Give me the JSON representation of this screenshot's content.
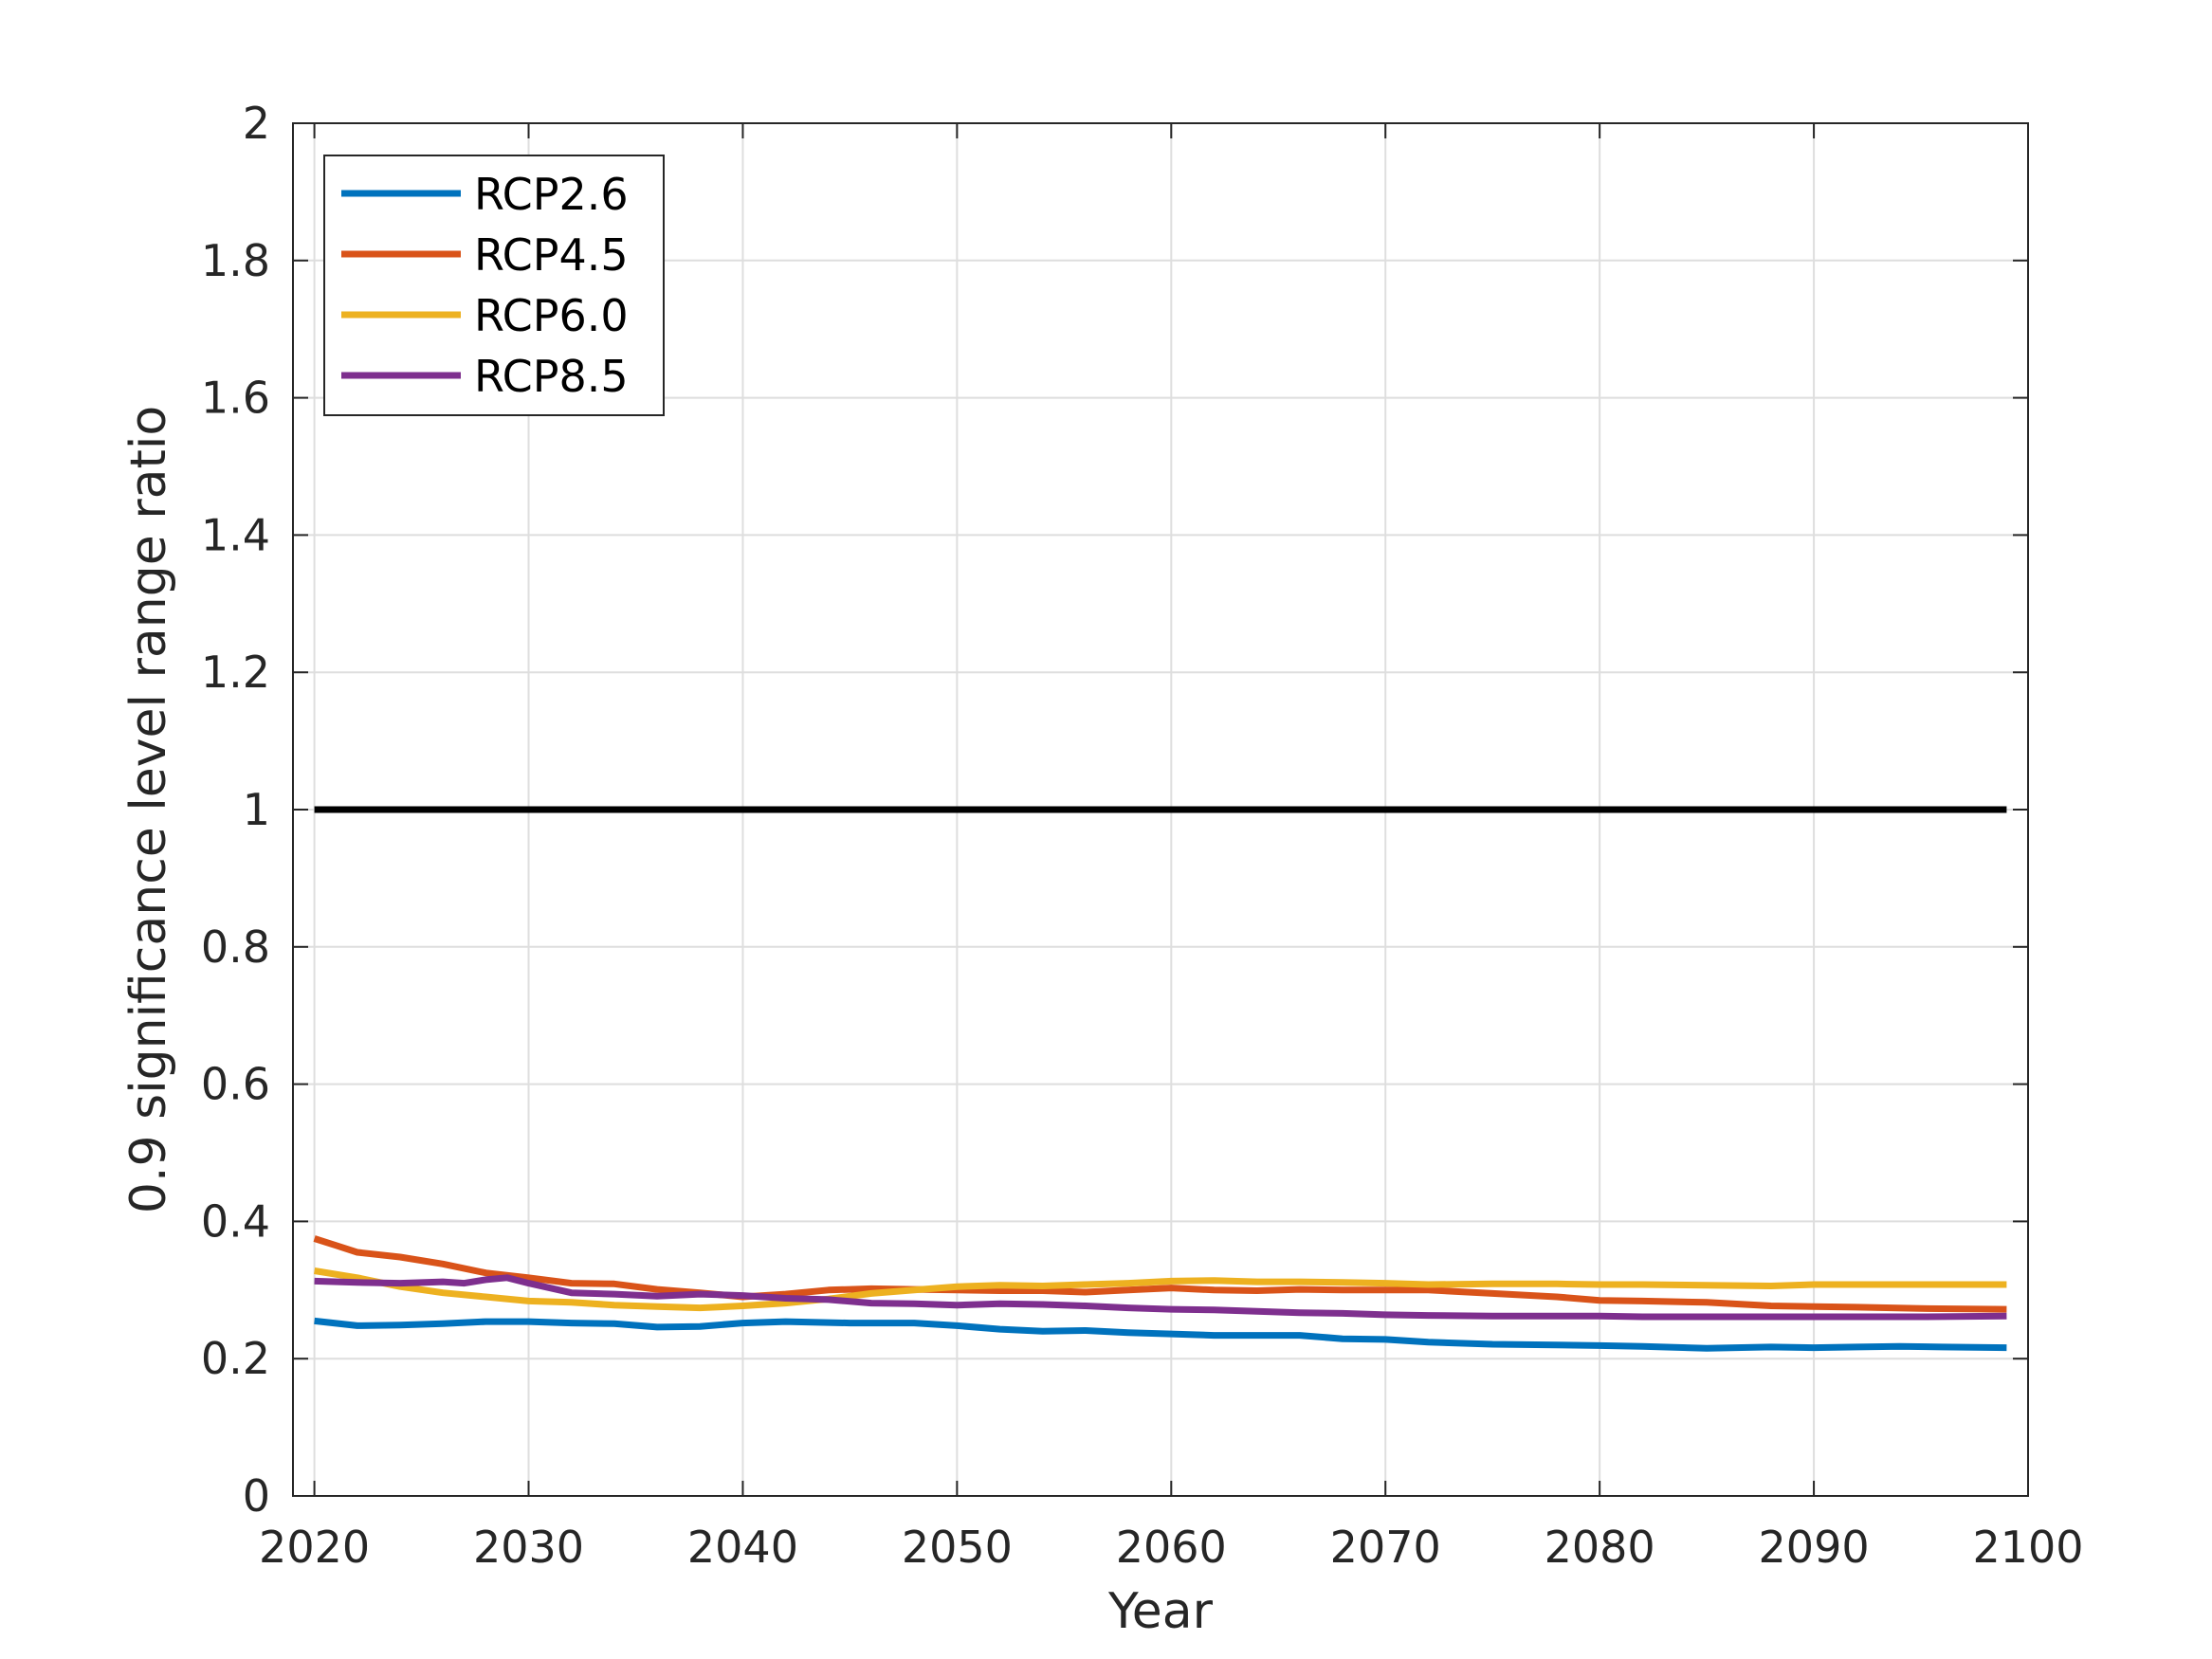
{
  "chart_data": {
    "type": "line",
    "xlabel": "Year",
    "ylabel": "0.9 significance level range ratio",
    "xlim": [
      2019,
      2100
    ],
    "ylim": [
      0,
      2
    ],
    "xticks": [
      2020,
      2030,
      2040,
      2050,
      2060,
      2070,
      2080,
      2090,
      2100
    ],
    "yticks": [
      0,
      0.2,
      0.4,
      0.6,
      0.8,
      1,
      1.2,
      1.4,
      1.6,
      1.8,
      2
    ],
    "ytick_labels": [
      "0",
      "0.2",
      "0.4",
      "0.6",
      "0.8",
      "1",
      "1.2",
      "1.4",
      "1.6",
      "1.8",
      "2"
    ],
    "xtick_labels": [
      "2020",
      "2030",
      "2040",
      "2050",
      "2060",
      "2070",
      "2080",
      "2090",
      "2100"
    ],
    "grid": true,
    "legend_position": "top-left",
    "reference_line": {
      "y": 1.0,
      "x_start": 2020,
      "x_end": 2099,
      "color": "#000000"
    },
    "series": [
      {
        "name": "RCP2.6",
        "color": "#0072BD",
        "x": [
          2020,
          2022,
          2024,
          2026,
          2028,
          2030,
          2032,
          2034,
          2036,
          2038,
          2040,
          2042,
          2045,
          2048,
          2050,
          2052,
          2054,
          2056,
          2058,
          2060,
          2062,
          2064,
          2066,
          2068,
          2070,
          2072,
          2075,
          2078,
          2080,
          2082,
          2085,
          2088,
          2090,
          2092,
          2094,
          2096,
          2099
        ],
        "values": [
          0.255,
          0.248,
          0.249,
          0.251,
          0.254,
          0.254,
          0.252,
          0.251,
          0.246,
          0.247,
          0.252,
          0.254,
          0.252,
          0.252,
          0.248,
          0.243,
          0.24,
          0.241,
          0.238,
          0.236,
          0.234,
          0.234,
          0.234,
          0.229,
          0.228,
          0.224,
          0.221,
          0.22,
          0.219,
          0.218,
          0.215,
          0.217,
          0.216,
          0.217,
          0.218,
          0.217,
          0.216
        ]
      },
      {
        "name": "RCP4.5",
        "color": "#D95319",
        "x": [
          2020,
          2021,
          2022,
          2024,
          2026,
          2028,
          2030,
          2032,
          2034,
          2036,
          2038,
          2040,
          2042,
          2044,
          2046,
          2048,
          2050,
          2052,
          2054,
          2056,
          2058,
          2060,
          2062,
          2064,
          2066,
          2068,
          2070,
          2072,
          2075,
          2078,
          2080,
          2082,
          2085,
          2088,
          2090,
          2092,
          2095,
          2099
        ],
        "values": [
          0.375,
          0.365,
          0.355,
          0.348,
          0.338,
          0.325,
          0.318,
          0.31,
          0.309,
          0.301,
          0.296,
          0.29,
          0.294,
          0.3,
          0.302,
          0.301,
          0.3,
          0.299,
          0.299,
          0.297,
          0.3,
          0.303,
          0.3,
          0.299,
          0.301,
          0.3,
          0.3,
          0.3,
          0.295,
          0.29,
          0.285,
          0.284,
          0.282,
          0.277,
          0.276,
          0.275,
          0.273,
          0.272
        ]
      },
      {
        "name": "RCP6.0",
        "color": "#EDB120",
        "x": [
          2020,
          2022,
          2024,
          2026,
          2028,
          2030,
          2032,
          2034,
          2036,
          2038,
          2040,
          2042,
          2044,
          2046,
          2048,
          2050,
          2052,
          2054,
          2056,
          2058,
          2060,
          2062,
          2064,
          2066,
          2068,
          2070,
          2072,
          2075,
          2078,
          2080,
          2082,
          2085,
          2088,
          2090,
          2092,
          2095,
          2099
        ],
        "values": [
          0.328,
          0.318,
          0.305,
          0.296,
          0.29,
          0.284,
          0.282,
          0.278,
          0.276,
          0.274,
          0.277,
          0.281,
          0.287,
          0.295,
          0.3,
          0.305,
          0.307,
          0.306,
          0.308,
          0.31,
          0.313,
          0.314,
          0.312,
          0.312,
          0.311,
          0.31,
          0.308,
          0.309,
          0.309,
          0.308,
          0.308,
          0.307,
          0.306,
          0.308,
          0.308,
          0.308,
          0.308
        ]
      },
      {
        "name": "RCP8.5",
        "color": "#7E2F8E",
        "x": [
          2020,
          2022,
          2024,
          2026,
          2027,
          2028,
          2029,
          2030,
          2032,
          2034,
          2036,
          2038,
          2040,
          2042,
          2044,
          2046,
          2048,
          2050,
          2052,
          2054,
          2056,
          2058,
          2060,
          2062,
          2064,
          2066,
          2068,
          2070,
          2072,
          2075,
          2078,
          2080,
          2082,
          2085,
          2088,
          2090,
          2092,
          2095,
          2099
        ],
        "values": [
          0.313,
          0.311,
          0.31,
          0.312,
          0.31,
          0.315,
          0.318,
          0.31,
          0.296,
          0.294,
          0.291,
          0.294,
          0.292,
          0.288,
          0.286,
          0.281,
          0.28,
          0.278,
          0.28,
          0.279,
          0.277,
          0.274,
          0.272,
          0.271,
          0.269,
          0.267,
          0.266,
          0.264,
          0.263,
          0.262,
          0.262,
          0.262,
          0.261,
          0.261,
          0.261,
          0.261,
          0.261,
          0.261,
          0.262
        ]
      }
    ]
  }
}
